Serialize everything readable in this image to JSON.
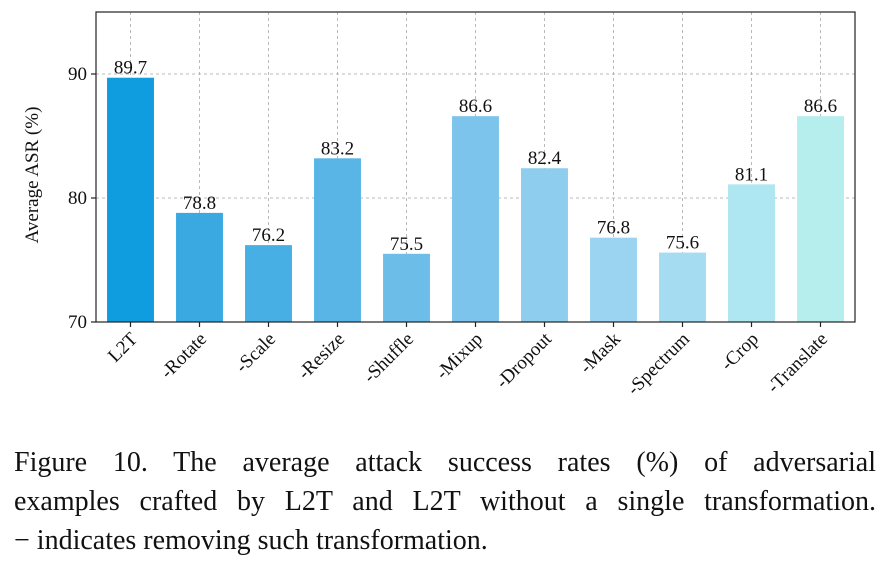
{
  "chart_data": {
    "type": "bar",
    "title": "",
    "xlabel": "",
    "ylabel": "Average ASR (%)",
    "ylim": [
      70,
      95
    ],
    "yticks": [
      70,
      80,
      90
    ],
    "grid": true,
    "categories": [
      "L2T",
      "-Rotate",
      "-Scale",
      "-Resize",
      "-Shuffle",
      "-Mixup",
      "-Dropout",
      "-Mask",
      "-Spectrum",
      "-Crop",
      "-Translate"
    ],
    "values": [
      89.7,
      78.8,
      76.2,
      83.2,
      75.5,
      86.6,
      82.4,
      76.8,
      75.6,
      81.1,
      86.6
    ],
    "data_labels": [
      "89.7",
      "78.8",
      "76.2",
      "83.2",
      "75.5",
      "86.6",
      "82.4",
      "76.8",
      "75.6",
      "81.1",
      "86.6"
    ],
    "colors": [
      "#0f9ddf",
      "#3aa9e2",
      "#47afe4",
      "#58b5e6",
      "#6cbee9",
      "#7dc4ec",
      "#8ecdee",
      "#9bd4f0",
      "#a6dcf2",
      "#aee6f1",
      "#b6eeee"
    ]
  },
  "caption": {
    "line1": "Figure 10.  The average attack success rates (%) of adversarial",
    "line2": "examples crafted by L2T and L2T without a single transformation.",
    "line3": "− indicates removing such transformation."
  }
}
